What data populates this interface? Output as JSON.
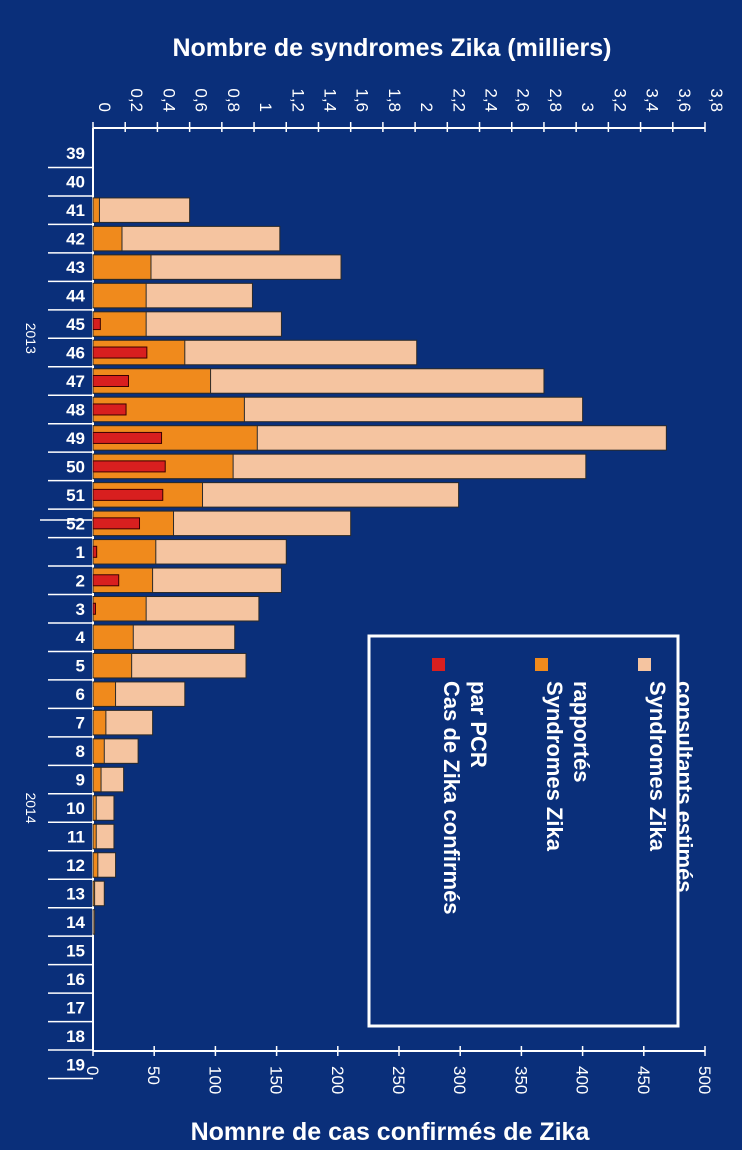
{
  "chart_data": {
    "type": "bar",
    "orientation": "horizontal",
    "title_top": "Nombre de syndromes Zika (milliers)",
    "title_bottom": "Nomnre de cas confirmés de Zika",
    "colors": {
      "background": "#0a2f7a",
      "estimated": "#f5c4a0",
      "reported": "#f08a1c",
      "confirmed": "#d81f1f",
      "axis": "#ffffff"
    },
    "top_axis": {
      "label": "Nombre de syndromes Zika (milliers)",
      "range": [
        0,
        3.8
      ],
      "ticks": [
        "0",
        "0,2",
        "0,4",
        "0,6",
        "0,8",
        "1",
        "1,2",
        "1,4",
        "1,6",
        "1,8",
        "2",
        "2,2",
        "2,4",
        "2,6",
        "2,8",
        "3",
        "3,2",
        "3,4",
        "3,6",
        "3,8"
      ]
    },
    "bottom_axis": {
      "label": "Nomnre de cas confirmés de Zika",
      "range": [
        0,
        500
      ],
      "ticks": [
        "0",
        "50",
        "100",
        "150",
        "200",
        "250",
        "300",
        "350",
        "400",
        "450",
        "500"
      ]
    },
    "years": [
      {
        "label": "2013",
        "from_week_index": 0,
        "to_week_index": 13
      },
      {
        "label": "2014",
        "from_week_index": 14,
        "to_week_index": 32
      }
    ],
    "weeks": [
      "39",
      "40",
      "41",
      "42",
      "43",
      "44",
      "45",
      "46",
      "47",
      "48",
      "49",
      "50",
      "51",
      "52",
      "1",
      "2",
      "3",
      "4",
      "5",
      "6",
      "7",
      "8",
      "9",
      "10",
      "11",
      "12",
      "13",
      "14",
      "15",
      "16",
      "17",
      "18",
      "19"
    ],
    "series": [
      {
        "name": "Syndromes Zika consultants estimés",
        "axis": "top",
        "unit": "milliers",
        "values": [
          0,
          0,
          0.6,
          1.16,
          1.54,
          0.99,
          1.17,
          2.01,
          2.8,
          3.04,
          3.56,
          3.06,
          2.27,
          1.6,
          1.2,
          1.17,
          1.03,
          0.88,
          0.95,
          0.57,
          0.37,
          0.28,
          0.19,
          0.13,
          0.13,
          0.14,
          0.07,
          0.01,
          0,
          0,
          0,
          0,
          0
        ]
      },
      {
        "name": "Syndromes Zika rapportés",
        "axis": "top",
        "unit": "milliers",
        "values": [
          0,
          0,
          0.04,
          0.18,
          0.36,
          0.33,
          0.33,
          0.57,
          0.73,
          0.94,
          1.02,
          0.87,
          0.68,
          0.5,
          0.39,
          0.37,
          0.33,
          0.25,
          0.24,
          0.14,
          0.08,
          0.07,
          0.05,
          0.02,
          0.02,
          0.03,
          0.01,
          0,
          0,
          0,
          0,
          0,
          0
        ]
      },
      {
        "name": "Cas de Zika confirmés par PCR",
        "axis": "bottom",
        "unit": "cas",
        "values": [
          0,
          0,
          0,
          0,
          0,
          0,
          6,
          44,
          29,
          27,
          56,
          59,
          57,
          38,
          3,
          21,
          2,
          0,
          0,
          0,
          0,
          0,
          0,
          0,
          0,
          0,
          0,
          0,
          0,
          0,
          0,
          0,
          0
        ]
      }
    ],
    "legend": {
      "placement": "bottom-right",
      "items": [
        {
          "label": "Syndromes Zika consultants estimés",
          "color": "#f5c4a0"
        },
        {
          "label": "Syndromes Zika rapportés",
          "color": "#f08a1c"
        },
        {
          "label": "Cas de Zika confirmés par PCR",
          "color": "#d81f1f"
        }
      ]
    }
  }
}
